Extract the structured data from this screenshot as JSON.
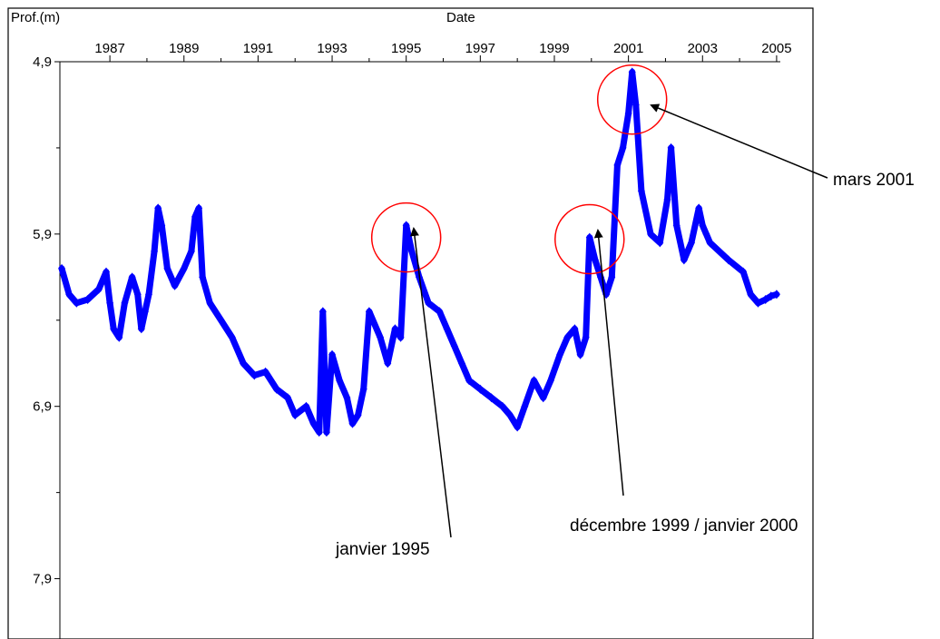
{
  "chart_data": {
    "type": "line",
    "title": "",
    "xlabel": "Date",
    "ylabel": "Prof.(m)",
    "x_ticks": [
      "1987",
      "1989",
      "1991",
      "1993",
      "1995",
      "1997",
      "1999",
      "2001",
      "2003",
      "2005"
    ],
    "y_ticks": [
      "4,9",
      "5,9",
      "6,9",
      "7,9"
    ],
    "xlim": [
      1985.65,
      2005.1
    ],
    "ylim": [
      4.9,
      8.25
    ],
    "y_inverted": true,
    "grid": false,
    "colors": {
      "series": "#0000ff",
      "circle": "#ff0000",
      "arrow": "#000000"
    },
    "series": [
      {
        "values": [
          [
            1985.7,
            6.1
          ],
          [
            1985.9,
            6.25
          ],
          [
            1986.1,
            6.3
          ],
          [
            1986.4,
            6.28
          ],
          [
            1986.7,
            6.22
          ],
          [
            1986.9,
            6.12
          ],
          [
            1987.0,
            6.3
          ],
          [
            1987.1,
            6.45
          ],
          [
            1987.25,
            6.5
          ],
          [
            1987.4,
            6.3
          ],
          [
            1987.6,
            6.15
          ],
          [
            1987.75,
            6.25
          ],
          [
            1987.85,
            6.45
          ],
          [
            1987.95,
            6.35
          ],
          [
            1988.05,
            6.25
          ],
          [
            1988.2,
            6.0
          ],
          [
            1988.3,
            5.75
          ],
          [
            1988.4,
            5.85
          ],
          [
            1988.55,
            6.1
          ],
          [
            1988.75,
            6.2
          ],
          [
            1989.0,
            6.1
          ],
          [
            1989.2,
            6.0
          ],
          [
            1989.3,
            5.8
          ],
          [
            1989.4,
            5.75
          ],
          [
            1989.5,
            6.15
          ],
          [
            1989.7,
            6.3
          ],
          [
            1990.0,
            6.4
          ],
          [
            1990.3,
            6.5
          ],
          [
            1990.6,
            6.65
          ],
          [
            1990.9,
            6.72
          ],
          [
            1991.2,
            6.7
          ],
          [
            1991.5,
            6.8
          ],
          [
            1991.8,
            6.85
          ],
          [
            1992.0,
            6.95
          ],
          [
            1992.3,
            6.9
          ],
          [
            1992.5,
            7.0
          ],
          [
            1992.65,
            7.05
          ],
          [
            1992.75,
            6.35
          ],
          [
            1992.85,
            7.05
          ],
          [
            1993.0,
            6.6
          ],
          [
            1993.2,
            6.75
          ],
          [
            1993.4,
            6.85
          ],
          [
            1993.55,
            7.0
          ],
          [
            1993.7,
            6.95
          ],
          [
            1993.85,
            6.8
          ],
          [
            1994.0,
            6.35
          ],
          [
            1994.3,
            6.5
          ],
          [
            1994.5,
            6.65
          ],
          [
            1994.7,
            6.45
          ],
          [
            1994.85,
            6.5
          ],
          [
            1995.0,
            5.85
          ],
          [
            1995.15,
            6.0
          ],
          [
            1995.35,
            6.15
          ],
          [
            1995.6,
            6.3
          ],
          [
            1995.9,
            6.35
          ],
          [
            1996.1,
            6.45
          ],
          [
            1996.3,
            6.55
          ],
          [
            1996.5,
            6.65
          ],
          [
            1996.7,
            6.75
          ],
          [
            1997.0,
            6.8
          ],
          [
            1997.3,
            6.85
          ],
          [
            1997.6,
            6.9
          ],
          [
            1997.8,
            6.95
          ],
          [
            1998.0,
            7.02
          ],
          [
            1998.2,
            6.9
          ],
          [
            1998.45,
            6.75
          ],
          [
            1998.7,
            6.85
          ],
          [
            1998.9,
            6.75
          ],
          [
            1999.15,
            6.6
          ],
          [
            1999.35,
            6.5
          ],
          [
            1999.55,
            6.45
          ],
          [
            1999.7,
            6.6
          ],
          [
            1999.85,
            6.5
          ],
          [
            1999.95,
            5.92
          ],
          [
            2000.1,
            6.05
          ],
          [
            2000.25,
            6.15
          ],
          [
            2000.4,
            6.25
          ],
          [
            2000.55,
            6.15
          ],
          [
            2000.7,
            5.5
          ],
          [
            2000.85,
            5.4
          ],
          [
            2001.0,
            5.2
          ],
          [
            2001.1,
            4.96
          ],
          [
            2001.2,
            5.15
          ],
          [
            2001.35,
            5.65
          ],
          [
            2001.6,
            5.9
          ],
          [
            2001.85,
            5.95
          ],
          [
            2002.05,
            5.7
          ],
          [
            2002.15,
            5.4
          ],
          [
            2002.3,
            5.85
          ],
          [
            2002.5,
            6.05
          ],
          [
            2002.7,
            5.95
          ],
          [
            2002.9,
            5.75
          ],
          [
            2003.0,
            5.85
          ],
          [
            2003.1,
            5.9
          ],
          [
            2003.2,
            5.95
          ],
          [
            2003.7,
            6.05
          ],
          [
            2004.1,
            6.12
          ],
          [
            2004.3,
            6.25
          ],
          [
            2004.5,
            6.3
          ],
          [
            2004.7,
            6.28
          ],
          [
            2004.85,
            6.26
          ],
          [
            2005.0,
            6.25
          ]
        ]
      }
    ],
    "annotations": [
      {
        "label": "janvier 1995",
        "circle_center": [
          1995.0,
          5.92
        ]
      },
      {
        "label": "décembre 1999 / janvier 2000",
        "circle_center": [
          1999.95,
          5.93
        ]
      },
      {
        "label": "mars 2001",
        "circle_center": [
          2001.1,
          5.12
        ]
      }
    ]
  }
}
